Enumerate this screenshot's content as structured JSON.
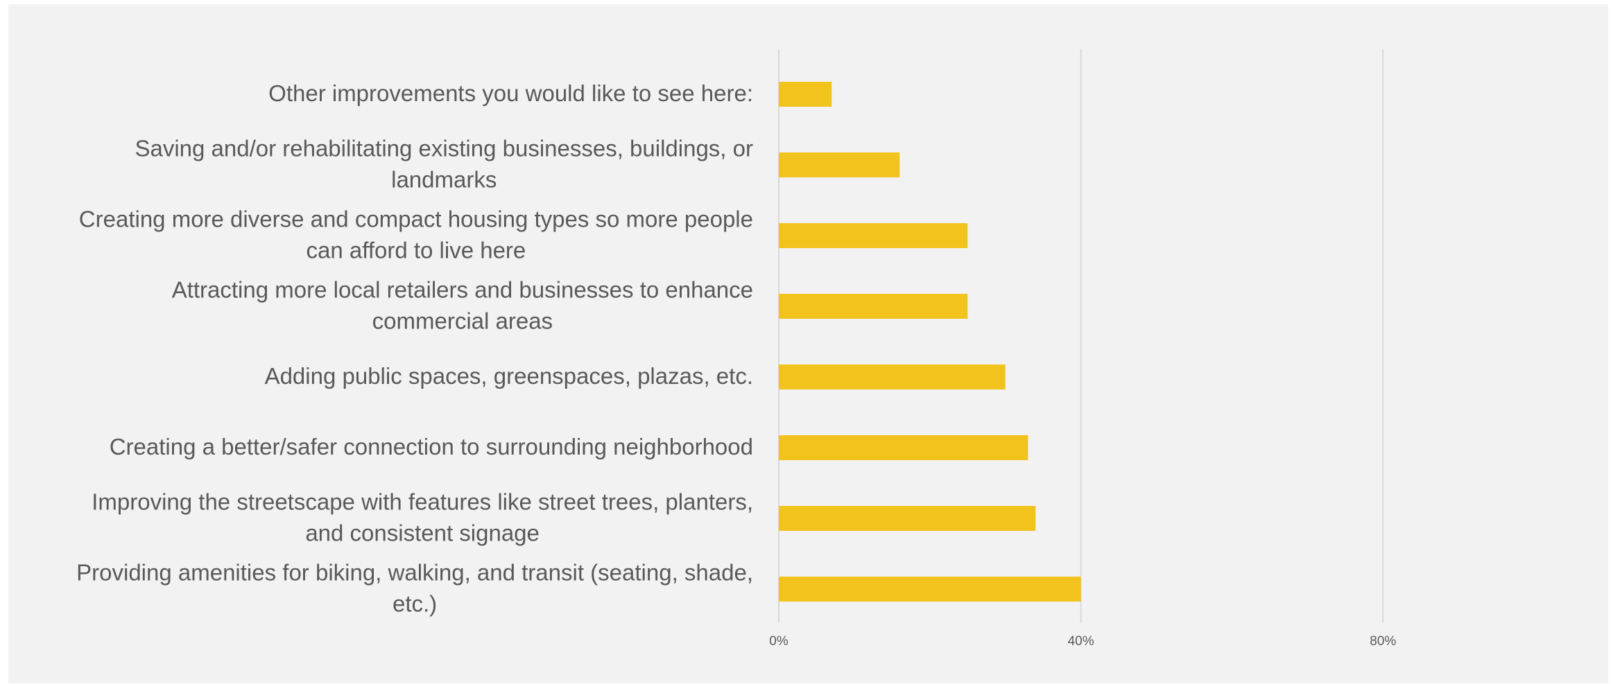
{
  "colors": {
    "bar": "#F2C31C",
    "gridline": "#D9D9D9",
    "text": "#595959",
    "background": "#F2F2F2"
  },
  "chart_data": {
    "type": "bar",
    "orientation": "horizontal",
    "categories": [
      [
        "Providing amenities for biking, walking, and transit (seating, shade,",
        "etc.)"
      ],
      [
        "Improving the streetscape with features like street trees, planters,",
        "and consistent signage"
      ],
      [
        "Creating a better/safer connection to surrounding neighborhood"
      ],
      [
        "Adding public spaces, greenspaces, plazas, etc."
      ],
      [
        "Attracting more local retailers and businesses to enhance",
        "commercial areas"
      ],
      [
        "Creating more diverse and compact housing types so more people",
        "can afford to live here"
      ],
      [
        "Saving and/or rehabilitating existing businesses, buildings, or",
        "landmarks"
      ],
      [
        "Other improvements you would like to see here:"
      ]
    ],
    "values": [
      40,
      34,
      33,
      30,
      25,
      25,
      16,
      7
    ],
    "value_unit": "%",
    "xlim": [
      0,
      110
    ],
    "ticks": [
      0,
      40,
      80
    ],
    "tick_labels": [
      "0%",
      "40%",
      "80%"
    ],
    "grid": true,
    "legend": false,
    "title": "",
    "xlabel": "",
    "ylabel": ""
  }
}
